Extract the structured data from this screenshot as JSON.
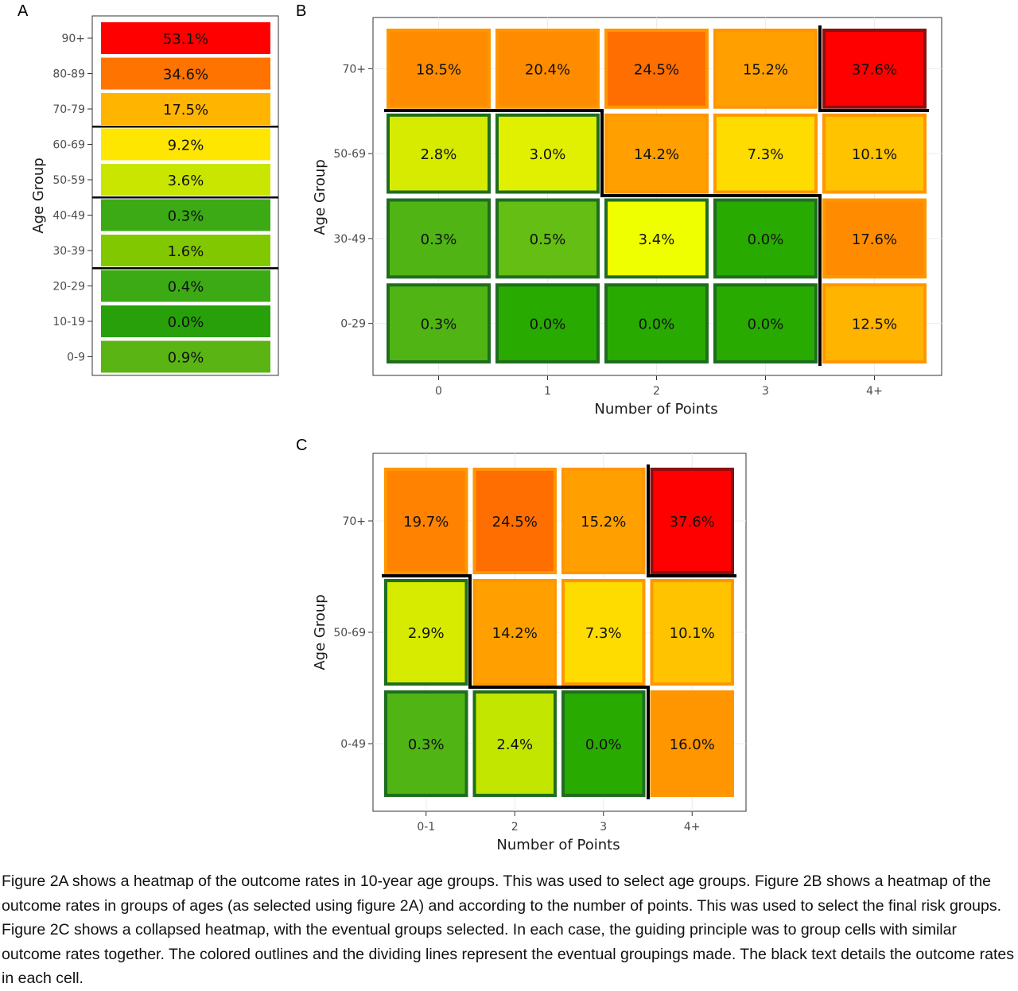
{
  "chart_data": [
    {
      "panel": "A",
      "type": "heatmap",
      "ylabel": "Age Group",
      "xlabel": "",
      "categories": [
        "90+",
        "80-89",
        "70-79",
        "60-69",
        "50-59",
        "40-49",
        "30-39",
        "20-29",
        "10-19",
        "0-9"
      ],
      "values": [
        53.1,
        34.6,
        17.5,
        9.2,
        3.6,
        0.3,
        1.6,
        0.4,
        0.0,
        0.9
      ],
      "labels": [
        "53.1%",
        "34.6%",
        "17.5%",
        "9.2%",
        "3.6%",
        "0.3%",
        "1.6%",
        "0.4%",
        "0.0%",
        "0.9%"
      ],
      "colors": [
        "#ff0000",
        "#ff7300",
        "#ffb400",
        "#ffe600",
        "#c8e600",
        "#3caa14",
        "#82c800",
        "#3caa14",
        "#28a00a",
        "#5ab414"
      ],
      "dividers_after": [
        "70-79",
        "50-59",
        "30-39"
      ]
    },
    {
      "panel": "B",
      "type": "heatmap",
      "xlabel": "Number of Points",
      "ylabel": "Age Group",
      "x": [
        "0",
        "1",
        "2",
        "3",
        "4+"
      ],
      "y": [
        "70+",
        "50-69",
        "30-49",
        "0-29"
      ],
      "values": [
        [
          18.5,
          20.4,
          24.5,
          15.2,
          37.6
        ],
        [
          2.8,
          3.0,
          14.2,
          7.3,
          10.1
        ],
        [
          0.3,
          0.5,
          3.4,
          0.0,
          17.6
        ],
        [
          0.3,
          0.0,
          0.0,
          0.0,
          12.5
        ]
      ],
      "labels": [
        [
          "18.5%",
          "20.4%",
          "24.5%",
          "15.2%",
          "37.6%"
        ],
        [
          "2.8%",
          "3.0%",
          "14.2%",
          "7.3%",
          "10.1%"
        ],
        [
          "0.3%",
          "0.5%",
          "3.4%",
          "0.0%",
          "17.6%"
        ],
        [
          "0.3%",
          "0.0%",
          "0.0%",
          "0.0%",
          "12.5%"
        ]
      ],
      "fills": [
        [
          "#ff8c00",
          "#ff8c00",
          "#ff6e00",
          "#ffa000",
          "#ff0000"
        ],
        [
          "#d7eb00",
          "#e1f000",
          "#ffa000",
          "#ffdc00",
          "#ffc300"
        ],
        [
          "#50b414",
          "#64be14",
          "#f0ff00",
          "#28aa00",
          "#ff8c00"
        ],
        [
          "#50b414",
          "#28aa00",
          "#28aa00",
          "#28aa00",
          "#ffb400"
        ]
      ],
      "outlines": [
        [
          "#ff9600",
          "#ff9600",
          "#ff9600",
          "#ff9600",
          "#8b1010"
        ],
        [
          "#1e6e1e",
          "#1e6e1e",
          "#ff9600",
          "#ff9600",
          "#ff9600"
        ],
        [
          "#1e6e1e",
          "#1e6e1e",
          "#1e6e1e",
          "#1e6e1e",
          "#ff9600"
        ],
        [
          "#1e6e1e",
          "#1e6e1e",
          "#1e6e1e",
          "#1e6e1e",
          "#ff9600"
        ]
      ]
    },
    {
      "panel": "C",
      "type": "heatmap",
      "xlabel": "Number of Points",
      "ylabel": "Age Group",
      "x": [
        "0-1",
        "2",
        "3",
        "4+"
      ],
      "y": [
        "70+",
        "50-69",
        "0-49"
      ],
      "values": [
        [
          19.7,
          24.5,
          15.2,
          37.6
        ],
        [
          2.9,
          14.2,
          7.3,
          10.1
        ],
        [
          0.3,
          2.4,
          0.0,
          16.0
        ]
      ],
      "labels": [
        [
          "19.7%",
          "24.5%",
          "15.2%",
          "37.6%"
        ],
        [
          "2.9%",
          "14.2%",
          "7.3%",
          "10.1%"
        ],
        [
          "0.3%",
          "2.4%",
          "0.0%",
          "16.0%"
        ]
      ],
      "fills": [
        [
          "#ff8200",
          "#ff6e00",
          "#ffa000",
          "#ff0000"
        ],
        [
          "#d7eb00",
          "#ffa000",
          "#ffdc00",
          "#ffc300"
        ],
        [
          "#50b414",
          "#c3e600",
          "#28aa00",
          "#ff9600"
        ]
      ],
      "outlines": [
        [
          "#ff9600",
          "#ff9600",
          "#ff9600",
          "#8b1010"
        ],
        [
          "#1e6e1e",
          "#ff9600",
          "#ff9600",
          "#ff9600"
        ],
        [
          "#1e6e1e",
          "#1e6e1e",
          "#1e6e1e",
          "#ff9600"
        ]
      ]
    }
  ],
  "caption": "Figure 2A shows a heatmap of the outcome rates in 10-year age groups. This was used to select age groups. Figure 2B shows a heatmap of the outcome rates in groups of ages (as selected using figure 2A) and according to the number of points. This was used to select the final risk groups. Figure 2C shows a collapsed heatmap, with the eventual groups selected. In each case, the guiding principle was to group cells with similar outcome rates together. The colored outlines and the dividing lines represent the eventual groupings made. The black text details the outcome rates in each cell."
}
